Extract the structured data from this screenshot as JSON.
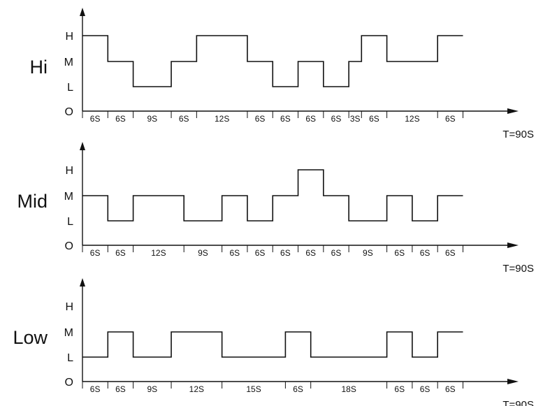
{
  "chart_data": [
    {
      "type": "line",
      "panel_label": "Hi",
      "y_ticks": [
        "H",
        "M",
        "L",
        "O"
      ],
      "period_label": "T=90S",
      "x_range": [
        0,
        90
      ],
      "segments": [
        {
          "label": "6S",
          "duration": 6,
          "level": "H"
        },
        {
          "label": "6S",
          "duration": 6,
          "level": "M"
        },
        {
          "label": "9S",
          "duration": 9,
          "level": "L"
        },
        {
          "label": "6S",
          "duration": 6,
          "level": "M"
        },
        {
          "label": "12S",
          "duration": 12,
          "level": "H"
        },
        {
          "label": "6S",
          "duration": 6,
          "level": "M"
        },
        {
          "label": "6S",
          "duration": 6,
          "level": "L"
        },
        {
          "label": "6S",
          "duration": 6,
          "level": "M"
        },
        {
          "label": "6S",
          "duration": 6,
          "level": "L"
        },
        {
          "label": "3S",
          "duration": 3,
          "level": "M"
        },
        {
          "label": "6S",
          "duration": 6,
          "level": "H"
        },
        {
          "label": "12S",
          "duration": 12,
          "level": "M"
        },
        {
          "label": "6S",
          "duration": 6,
          "level": "H"
        }
      ]
    },
    {
      "type": "line",
      "panel_label": "Mid",
      "y_ticks": [
        "H",
        "M",
        "L",
        "O"
      ],
      "period_label": "T=90S",
      "x_range": [
        0,
        90
      ],
      "segments": [
        {
          "label": "6S",
          "duration": 6,
          "level": "M"
        },
        {
          "label": "6S",
          "duration": 6,
          "level": "L"
        },
        {
          "label": "12S",
          "duration": 12,
          "level": "M"
        },
        {
          "label": "9S",
          "duration": 9,
          "level": "L"
        },
        {
          "label": "6S",
          "duration": 6,
          "level": "M"
        },
        {
          "label": "6S",
          "duration": 6,
          "level": "L"
        },
        {
          "label": "6S",
          "duration": 6,
          "level": "M"
        },
        {
          "label": "6S",
          "duration": 6,
          "level": "H"
        },
        {
          "label": "6S",
          "duration": 6,
          "level": "M"
        },
        {
          "label": "9S",
          "duration": 9,
          "level": "L"
        },
        {
          "label": "6S",
          "duration": 6,
          "level": "M"
        },
        {
          "label": "6S",
          "duration": 6,
          "level": "L"
        },
        {
          "label": "6S",
          "duration": 6,
          "level": "M"
        }
      ]
    },
    {
      "type": "line",
      "panel_label": "Low",
      "y_ticks": [
        "H",
        "M",
        "L",
        "O"
      ],
      "period_label": "T=90S",
      "x_range": [
        0,
        90
      ],
      "segments": [
        {
          "label": "6S",
          "duration": 6,
          "level": "L"
        },
        {
          "label": "6S",
          "duration": 6,
          "level": "M"
        },
        {
          "label": "9S",
          "duration": 9,
          "level": "L"
        },
        {
          "label": "12S",
          "duration": 12,
          "level": "M"
        },
        {
          "label": "15S",
          "duration": 15,
          "level": "L"
        },
        {
          "label": "6S",
          "duration": 6,
          "level": "M"
        },
        {
          "label": "18S",
          "duration": 18,
          "level": "L"
        },
        {
          "label": "6S",
          "duration": 6,
          "level": "M"
        },
        {
          "label": "6S",
          "duration": 6,
          "level": "L"
        },
        {
          "label": "6S",
          "duration": 6,
          "level": "M"
        }
      ]
    }
  ]
}
